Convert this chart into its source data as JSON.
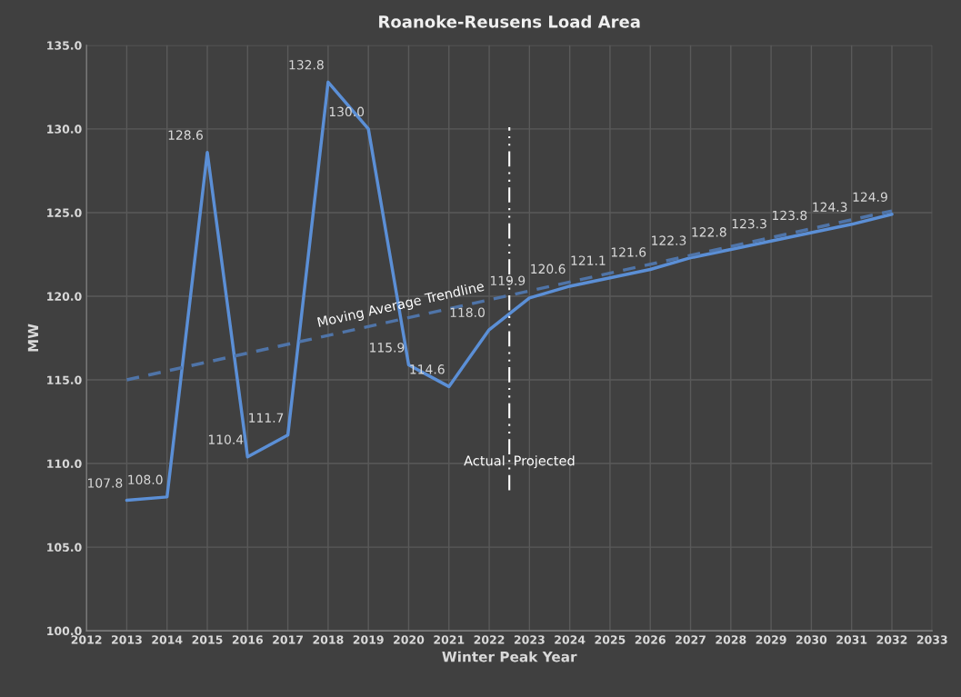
{
  "chart_data": {
    "type": "line",
    "title": "Roanoke-Reusens Load Area",
    "xlabel": "Winter Peak Year",
    "ylabel": "MW",
    "x": [
      2013,
      2014,
      2015,
      2016,
      2017,
      2018,
      2019,
      2020,
      2021,
      2022,
      2023,
      2024,
      2025,
      2026,
      2027,
      2028,
      2029,
      2030,
      2031,
      2032
    ],
    "series": [
      {
        "color": "#5b8fd6",
        "values": [
          107.8,
          108.0,
          128.6,
          110.4,
          111.7,
          132.8,
          130.0,
          115.9,
          114.6,
          118.0,
          119.9,
          120.6,
          121.1,
          121.6,
          122.3,
          122.8,
          123.3,
          123.8,
          124.3,
          124.9
        ],
        "value_labels": [
          "107.8",
          "108.0",
          "128.6",
          "110.4",
          "111.7",
          "132.8",
          "130.0",
          "115.9",
          "114.6",
          "118.0",
          "119.9",
          "120.6",
          "121.1",
          "121.6",
          "122.3",
          "122.8",
          "123.3",
          "123.8",
          "124.3",
          "124.9"
        ]
      },
      {
        "name": "Moving Average Trendline",
        "type": "line",
        "line_style": "dashed",
        "color": "#4f74a8",
        "x": [
          2013,
          2032
        ],
        "values": [
          115.0,
          125.1
        ]
      }
    ],
    "xlim": [
      2012,
      2033
    ],
    "xticks": [
      2012,
      2013,
      2014,
      2015,
      2016,
      2017,
      2018,
      2019,
      2020,
      2021,
      2022,
      2023,
      2024,
      2025,
      2026,
      2027,
      2028,
      2029,
      2030,
      2031,
      2032,
      2033
    ],
    "ylim": [
      100,
      135
    ],
    "yticks": [
      {
        "value": 100,
        "label": "100.0"
      },
      {
        "value": 105,
        "label": "105.0"
      },
      {
        "value": 110,
        "label": "110.0"
      },
      {
        "value": 115,
        "label": "115.0"
      },
      {
        "value": 120,
        "label": "120.0"
      },
      {
        "value": 125,
        "label": "125.0"
      },
      {
        "value": 130,
        "label": "130.0"
      },
      {
        "value": 135,
        "label": "135.0"
      }
    ],
    "grid": true,
    "ref_lines": [
      {
        "axis": "x",
        "value": 2022.5,
        "color": "#ffffff",
        "line_style": "dashdot"
      }
    ],
    "annotations": [
      {
        "text": "Actual",
        "x": 2022.4,
        "y": 110.1
      },
      {
        "text": "Projected",
        "x": 2022.6,
        "y": 110.1
      }
    ]
  }
}
